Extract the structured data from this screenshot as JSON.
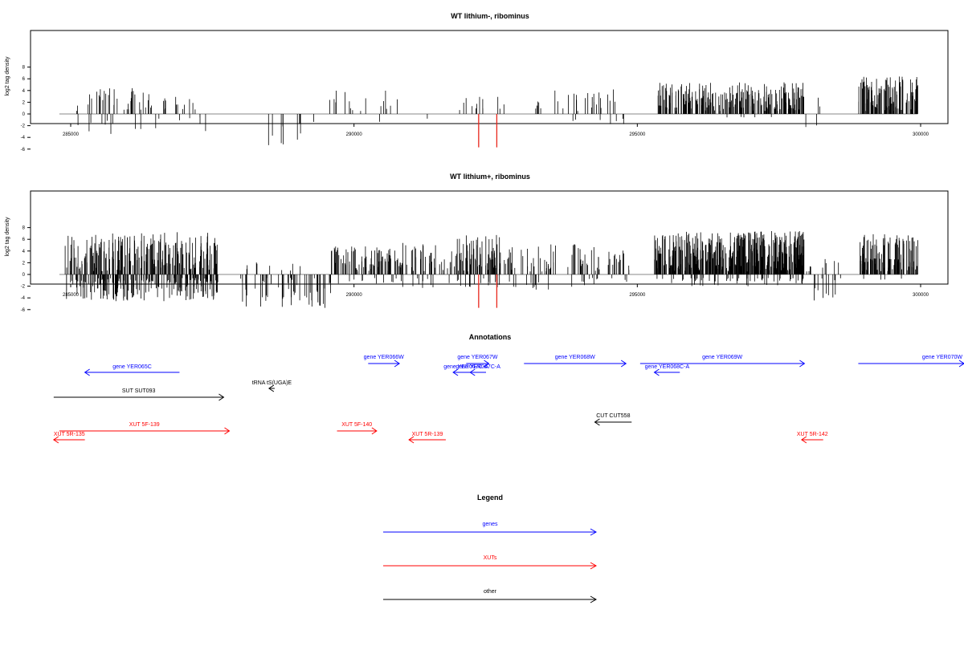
{
  "colors": {
    "axis": "#000000",
    "baseline": "#888888",
    "highlight": "#e8261c",
    "gene": "#0000ff",
    "xut": "#ff0000",
    "other": "#000000"
  },
  "chart_data": [
    {
      "type": "bar",
      "title": "WT lithium-, ribominus",
      "ylabel": "log2 tag density",
      "xlim": [
        284800,
        300950
      ],
      "ylim": [
        -6,
        8.5
      ],
      "xticks": [
        "285000",
        "290000",
        "295000",
        "300000"
      ],
      "yticks": [
        "8",
        "6",
        "4",
        "2",
        "0",
        "-2",
        "-4",
        "-6"
      ],
      "highlight_positions": [
        292200,
        292520
      ],
      "highlight_value": -5.7
    },
    {
      "type": "bar",
      "title": "WT lithium+, ribominus",
      "ylabel": "log2 tag density",
      "xlim": [
        284800,
        300950
      ],
      "ylim": [
        -6,
        8.5
      ],
      "xticks": [
        "285000",
        "290000",
        "295000",
        "300000"
      ],
      "yticks": [
        "8",
        "6",
        "4",
        "2",
        "0",
        "-2",
        "-4",
        "-6"
      ],
      "highlight_positions": [
        292200,
        292520
      ],
      "highlight_value": -5.7
    }
  ],
  "annotations": {
    "title": "Annotations",
    "features": [
      {
        "label": "gene YER065C",
        "kind": "gene",
        "start": 285250,
        "end": 286920,
        "strand": "-",
        "row": 1
      },
      {
        "label": "gene YER066W",
        "kind": "gene",
        "start": 290250,
        "end": 290800,
        "strand": "+",
        "row": 0
      },
      {
        "label": "gene YER067W",
        "kind": "gene",
        "start": 291980,
        "end": 292380,
        "strand": "+",
        "row": 0
      },
      {
        "label": "gene YER067C-A",
        "kind": "gene",
        "start": 291750,
        "end": 292200,
        "strand": "-",
        "row": 1
      },
      {
        "label": "gene YER067C-A",
        "kind": "gene",
        "start": 292050,
        "end": 292330,
        "strand": "-",
        "row": 1
      },
      {
        "label": "gene YER068W",
        "kind": "gene",
        "start": 293000,
        "end": 294800,
        "strand": "+",
        "row": 0
      },
      {
        "label": "gene YER068C-A",
        "kind": "gene",
        "start": 295300,
        "end": 295750,
        "strand": "-",
        "row": 1
      },
      {
        "label": "gene YER069W",
        "kind": "gene",
        "start": 295050,
        "end": 297950,
        "strand": "+",
        "row": 0
      },
      {
        "label": "gene YER070W",
        "kind": "gene",
        "start": 298900,
        "end": 300950,
        "strand": "+",
        "row": 0
      },
      {
        "label": "tRNA tS(UGA)E",
        "kind": "other",
        "start": 288500,
        "end": 288600,
        "strand": "-",
        "row": 2
      },
      {
        "label": "SUT SUT093",
        "kind": "other",
        "start": 284700,
        "end": 287700,
        "strand": "+",
        "row": 3
      },
      {
        "label": "CUT CUT558",
        "kind": "other",
        "start": 294250,
        "end": 294900,
        "strand": "-",
        "row": 4
      },
      {
        "label": "XUT 5R-135",
        "kind": "xut",
        "start": 284700,
        "end": 285250,
        "strand": "-",
        "row": 5
      },
      {
        "label": "XUT 5F-139",
        "kind": "xut",
        "start": 284800,
        "end": 287800,
        "strand": "+",
        "row": 6
      },
      {
        "label": "XUT 5F-140",
        "kind": "xut",
        "start": 289700,
        "end": 290400,
        "strand": "+",
        "row": 6
      },
      {
        "label": "XUT 5R-139",
        "kind": "xut",
        "start": 290970,
        "end": 291620,
        "strand": "-",
        "row": 5
      },
      {
        "label": "XUT 5R-142",
        "kind": "xut",
        "start": 297900,
        "end": 298280,
        "strand": "-",
        "row": 5
      }
    ]
  },
  "legend": {
    "title": "Legend",
    "items": [
      {
        "label": "genes",
        "kind": "gene"
      },
      {
        "label": "XUTs",
        "kind": "xut"
      },
      {
        "label": "other",
        "kind": "other"
      }
    ]
  }
}
